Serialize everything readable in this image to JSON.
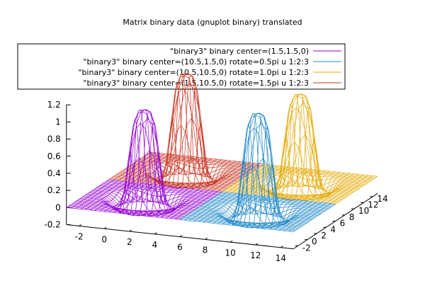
{
  "chart_data": {
    "type": "surface-3d",
    "title": "Matrix binary data (gnuplot binary) translated",
    "series": [
      {
        "name": "\"binary3\" binary center=(1.5,1.5,0)",
        "color": "#9400d3",
        "center": [
          1.5,
          1.5
        ],
        "peak": 1.05
      },
      {
        "name": "\"binary3\" binary center=(10.5,1.5,0) rotate=0.5pi u 1:2:3",
        "color": "#1e88c8",
        "center": [
          10.5,
          1.5
        ],
        "peak": 1.15
      },
      {
        "name": "\"binary3\" binary center=(10.5,10.5,0) rotate=1.0pi u 1:2:3",
        "color": "#e5a800",
        "center": [
          10.5,
          10.5
        ],
        "peak": 1.05
      },
      {
        "name": "\"binary3\" binary center=(1.5,10.5,0) rotate=1.5pi u 1:2:3",
        "color": "#c8321e",
        "center": [
          1.5,
          10.5
        ],
        "peak": 1.15
      }
    ],
    "x_ticks": [
      "-2",
      "0",
      "2",
      "4",
      "6",
      "8",
      "10",
      "12",
      "14"
    ],
    "y_ticks": [
      "-2",
      "0",
      "2",
      "4",
      "6",
      "8",
      "10",
      "12",
      "14"
    ],
    "z_ticks": [
      "-0.2",
      "0",
      "0.2",
      "0.4",
      "0.6",
      "0.8",
      "1",
      "1.2"
    ],
    "x_values": [
      -2,
      0,
      2,
      4,
      6,
      8,
      10,
      12,
      14
    ],
    "y_values": [
      -2,
      0,
      2,
      4,
      6,
      8,
      10,
      12,
      14
    ],
    "z_values": [
      -0.2,
      0,
      0.2,
      0.4,
      0.6,
      0.8,
      1,
      1.2
    ],
    "xlim": [
      -3,
      15
    ],
    "ylim": [
      -3,
      15
    ],
    "zlim": [
      -0.2,
      1.2
    ],
    "grid": false,
    "legend_position": "top"
  }
}
